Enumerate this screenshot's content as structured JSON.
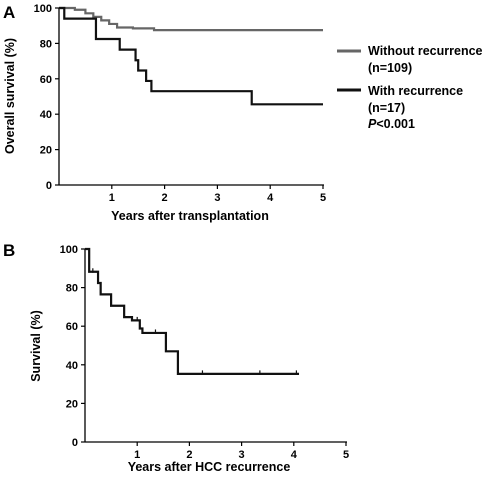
{
  "chart_data": [
    {
      "panel": "A",
      "type": "line",
      "step": true,
      "xlabel": "Years after  transplantation",
      "ylabel": "Overall survival (%)",
      "xlim": [
        0,
        5
      ],
      "ylim": [
        0,
        100
      ],
      "xticks": [
        "1",
        "2",
        "3",
        "4",
        "5"
      ],
      "yticks": [
        "0",
        "20",
        "40",
        "60",
        "80",
        "100"
      ],
      "grid": false,
      "legend_position": "right",
      "series": [
        {
          "name": "Without recurrence",
          "name_line2": "(n=109)",
          "color": "#666666",
          "points": [
            [
              0,
              100
            ],
            [
              0.3,
              99
            ],
            [
              0.5,
              97
            ],
            [
              0.65,
              95
            ],
            [
              0.8,
              93
            ],
            [
              0.95,
              91
            ],
            [
              1.1,
              89
            ],
            [
              1.4,
              88.5
            ],
            [
              1.8,
              87.5
            ],
            [
              5,
              87.5
            ]
          ],
          "censor_marks": []
        },
        {
          "name": "With recurrence",
          "name_line2": "(n=17)",
          "color": "#111111",
          "points": [
            [
              0,
              100
            ],
            [
              0.1,
              94
            ],
            [
              0.7,
              82.5
            ],
            [
              1.15,
              76.5
            ],
            [
              1.45,
              70.5
            ],
            [
              1.5,
              64.7
            ],
            [
              1.65,
              58.8
            ],
            [
              1.75,
              53
            ],
            [
              3.65,
              45.6
            ],
            [
              5,
              45.6
            ]
          ],
          "censor_marks": []
        }
      ],
      "annotation": {
        "prefix": "P",
        "text": "<0.001"
      }
    },
    {
      "panel": "B",
      "type": "line",
      "step": true,
      "xlabel": "Years after HCC recurrence",
      "ylabel": "Survival (%)",
      "xlim": [
        0,
        5
      ],
      "ylim": [
        0,
        100
      ],
      "xticks": [
        "1",
        "2",
        "3",
        "4",
        "5"
      ],
      "yticks": [
        "0",
        "20",
        "40",
        "60",
        "80",
        "100"
      ],
      "grid": false,
      "series": [
        {
          "color": "#111111",
          "points": [
            [
              0,
              100
            ],
            [
              0.08,
              88.2
            ],
            [
              0.25,
              82.4
            ],
            [
              0.3,
              76.5
            ],
            [
              0.5,
              70.6
            ],
            [
              0.75,
              64.7
            ],
            [
              0.9,
              63
            ],
            [
              1.05,
              58.8
            ],
            [
              1.1,
              56.5
            ],
            [
              1.55,
              47
            ],
            [
              1.78,
              35.3
            ],
            [
              4.1,
              35.3
            ]
          ],
          "censor_marks": [
            [
              0.15,
              88.2
            ],
            [
              1.0,
              63
            ],
            [
              1.35,
              56.5
            ],
            [
              2.25,
              35.3
            ],
            [
              3.35,
              35.3
            ],
            [
              4.05,
              35.3
            ]
          ]
        }
      ]
    }
  ]
}
